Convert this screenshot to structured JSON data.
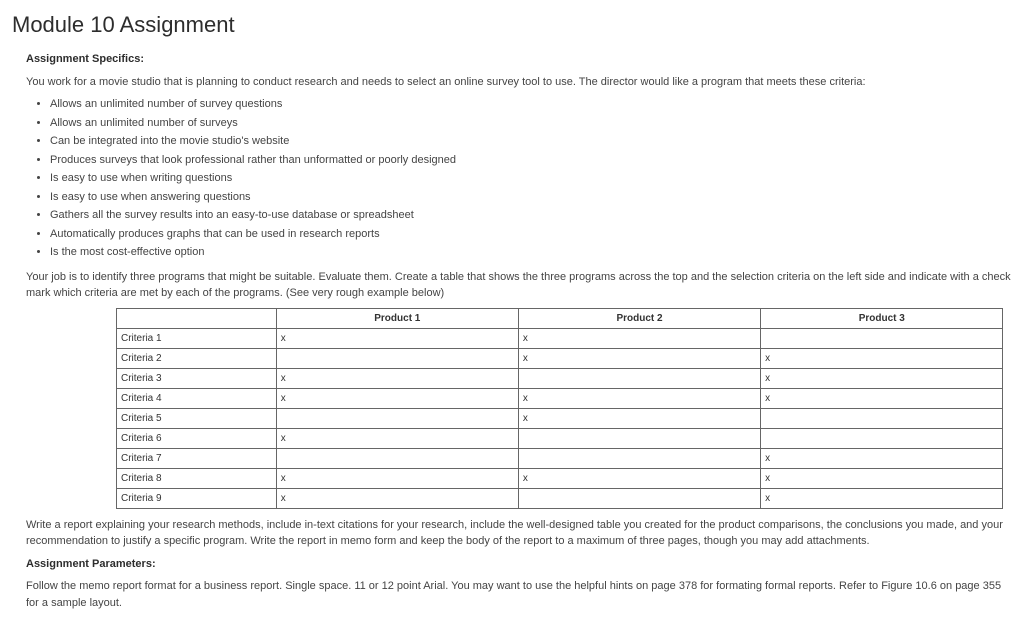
{
  "title": "Module 10 Assignment",
  "specifics_heading": "Assignment Specifics:",
  "intro": "You work for a movie studio that is planning to conduct research and needs to select an online survey tool to use. The director would like a program that meets these criteria:",
  "criteria_list": [
    "Allows an unlimited number of survey questions",
    "Allows an unlimited number of surveys",
    "Can be integrated into the movie studio's website",
    "Produces surveys that look professional rather than unformatted or poorly designed",
    "Is easy to use when writing questions",
    "Is easy to use when answering questions",
    "Gathers all the survey results into an easy-to-use database or spreadsheet",
    "Automatically produces graphs that can be used in research reports",
    "Is the most cost-effective option"
  ],
  "job_text": "Your job is to identify three programs that might be suitable. Evaluate them. Create a table that shows the three programs across the top and the selection criteria on the left side and indicate with a check mark which criteria are met by each of the programs. (See very rough example below)",
  "table": {
    "columns": [
      "",
      "Product 1",
      "Product 2",
      "Product 3"
    ],
    "rows": [
      [
        "Criteria 1",
        "x",
        "x",
        ""
      ],
      [
        "Criteria 2",
        "",
        "x",
        "x"
      ],
      [
        "Criteria 3",
        "x",
        "",
        "x"
      ],
      [
        "Criteria 4",
        "x",
        "x",
        "x"
      ],
      [
        "Criteria 5",
        "",
        "x",
        ""
      ],
      [
        "Criteria 6",
        "x",
        "",
        ""
      ],
      [
        "Criteria 7",
        "",
        "",
        "x"
      ],
      [
        "Criteria 8",
        "x",
        "x",
        "x"
      ],
      [
        "Criteria 9",
        "x",
        "",
        "x"
      ]
    ],
    "border_color": "#666666",
    "font_size_pt": 10
  },
  "report_text": "Write a report explaining your research methods, include in-text citations for your research, include the well-designed table you created for the product comparisons, the conclusions you made, and your recommendation to justify a specific program. Write the report in memo form and keep the body of the report to a maximum of three pages, though you may add attachments.",
  "parameters_heading": "Assignment Parameters:",
  "parameters_text": "Follow the memo report format for a business report. Single space. 11 or 12 point Arial. You may want to use the helpful hints on page 378 for formating formal reports. Refer to Figure 10.6 on page 355 for a sample layout."
}
